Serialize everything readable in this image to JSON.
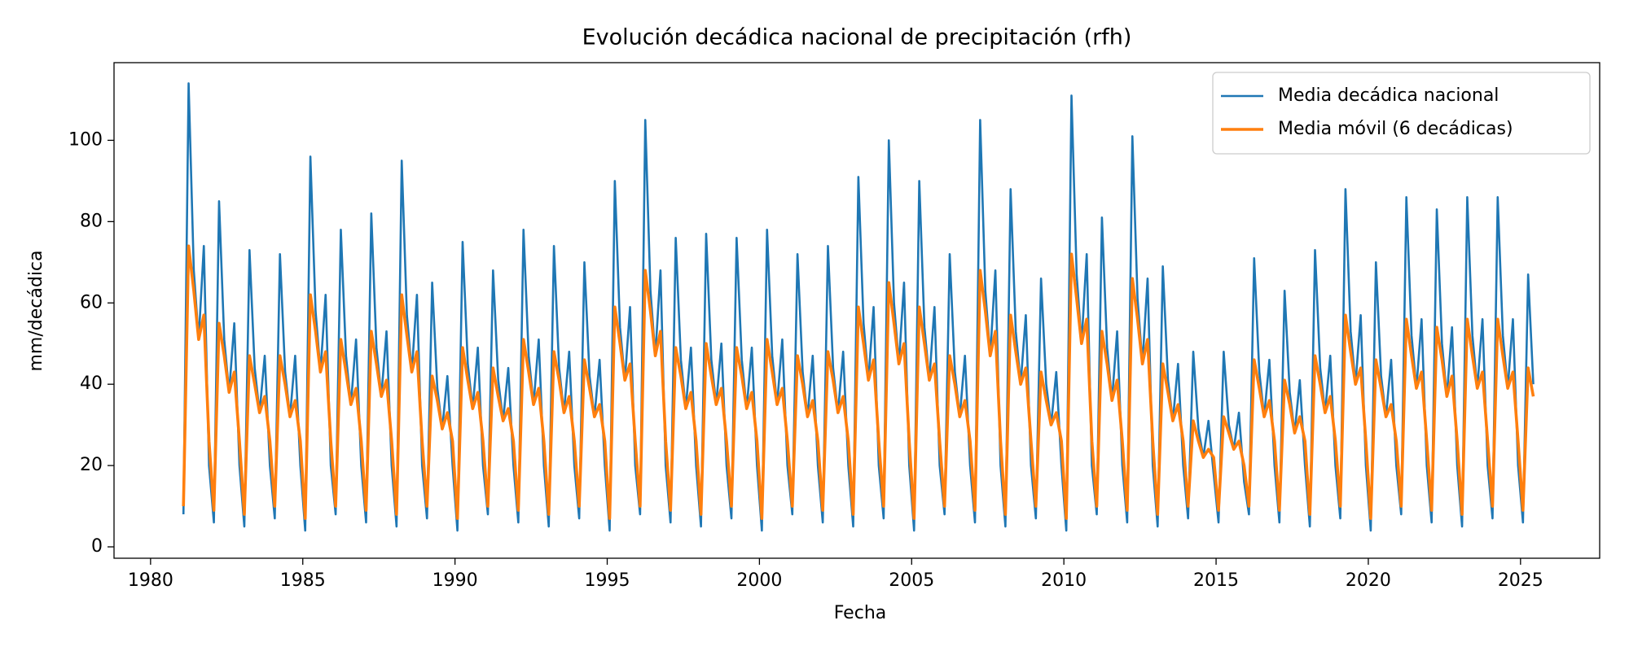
{
  "chart_data": {
    "type": "line",
    "title": "Evolución decádica nacional de precipitación (rfh)",
    "xlabel": "Fecha",
    "ylabel": "mm/decádica",
    "xlim": [
      1978.8,
      2027.6
    ],
    "ylim": [
      -2.8,
      119.1
    ],
    "xticks": [
      1980,
      1985,
      1990,
      1995,
      2000,
      2005,
      2010,
      2015,
      2020,
      2025
    ],
    "yticks": [
      0,
      20,
      40,
      60,
      80,
      100
    ],
    "legend": "upper right",
    "grid": false,
    "x": [
      1981.08,
      1981.25,
      1981.42,
      1981.58,
      1981.75,
      1981.92,
      1982.08,
      1982.25,
      1982.42,
      1982.58,
      1982.75,
      1982.92,
      1983.08,
      1983.25,
      1983.42,
      1983.58,
      1983.75,
      1983.92,
      1984.08,
      1984.25,
      1984.42,
      1984.58,
      1984.75,
      1984.92,
      1985.08,
      1985.25,
      1985.42,
      1985.58,
      1985.75,
      1985.92,
      1986.08,
      1986.25,
      1986.42,
      1986.58,
      1986.75,
      1986.92,
      1987.08,
      1987.25,
      1987.42,
      1987.58,
      1987.75,
      1987.92,
      1988.08,
      1988.25,
      1988.42,
      1988.58,
      1988.75,
      1988.92,
      1989.08,
      1989.25,
      1989.42,
      1989.58,
      1989.75,
      1989.92,
      1990.08,
      1990.25,
      1990.42,
      1990.58,
      1990.75,
      1990.92,
      1991.08,
      1991.25,
      1991.42,
      1991.58,
      1991.75,
      1991.92,
      1992.08,
      1992.25,
      1992.42,
      1992.58,
      1992.75,
      1992.92,
      1993.08,
      1993.25,
      1993.42,
      1993.58,
      1993.75,
      1993.92,
      1994.08,
      1994.25,
      1994.42,
      1994.58,
      1994.75,
      1994.92,
      1995.08,
      1995.25,
      1995.42,
      1995.58,
      1995.75,
      1995.92,
      1996.08,
      1996.25,
      1996.42,
      1996.58,
      1996.75,
      1996.92,
      1997.08,
      1997.25,
      1997.42,
      1997.58,
      1997.75,
      1997.92,
      1998.08,
      1998.25,
      1998.42,
      1998.58,
      1998.75,
      1998.92,
      1999.08,
      1999.25,
      1999.42,
      1999.58,
      1999.75,
      1999.92,
      2000.08,
      2000.25,
      2000.42,
      2000.58,
      2000.75,
      2000.92,
      2001.08,
      2001.25,
      2001.42,
      2001.58,
      2001.75,
      2001.92,
      2002.08,
      2002.25,
      2002.42,
      2002.58,
      2002.75,
      2002.92,
      2003.08,
      2003.25,
      2003.42,
      2003.58,
      2003.75,
      2003.92,
      2004.08,
      2004.25,
      2004.42,
      2004.58,
      2004.75,
      2004.92,
      2005.08,
      2005.25,
      2005.42,
      2005.58,
      2005.75,
      2005.92,
      2006.08,
      2006.25,
      2006.42,
      2006.58,
      2006.75,
      2006.92,
      2007.08,
      2007.25,
      2007.42,
      2007.58,
      2007.75,
      2007.92,
      2008.08,
      2008.25,
      2008.42,
      2008.58,
      2008.75,
      2008.92,
      2009.08,
      2009.25,
      2009.42,
      2009.58,
      2009.75,
      2009.92,
      2010.08,
      2010.25,
      2010.42,
      2010.58,
      2010.75,
      2010.92,
      2011.08,
      2011.25,
      2011.42,
      2011.58,
      2011.75,
      2011.92,
      2012.08,
      2012.25,
      2012.42,
      2012.58,
      2012.75,
      2012.92,
      2013.08,
      2013.25,
      2013.42,
      2013.58,
      2013.75,
      2013.92,
      2014.08,
      2014.25,
      2014.42,
      2014.58,
      2014.75,
      2014.92,
      2015.08,
      2015.25,
      2015.42,
      2015.58,
      2015.75,
      2015.92,
      2016.08,
      2016.25,
      2016.42,
      2016.58,
      2016.75,
      2016.92,
      2017.08,
      2017.25,
      2017.42,
      2017.58,
      2017.75,
      2017.92,
      2018.08,
      2018.25,
      2018.42,
      2018.58,
      2018.75,
      2018.92,
      2019.08,
      2019.25,
      2019.42,
      2019.58,
      2019.75,
      2019.92,
      2020.08,
      2020.25,
      2020.42,
      2020.58,
      2020.75,
      2020.92,
      2021.08,
      2021.25,
      2021.42,
      2021.58,
      2021.75,
      2021.92,
      2022.08,
      2022.25,
      2022.42,
      2022.58,
      2022.75,
      2022.92,
      2023.08,
      2023.25,
      2023.42,
      2023.58,
      2023.75,
      2023.92,
      2024.08,
      2024.25,
      2024.42,
      2024.58,
      2024.75,
      2024.92,
      2025.08,
      2025.25,
      2025.42
    ],
    "series": [
      {
        "name": "Media decádica nacional",
        "color": "#1f77b4",
        "width": 2.6,
        "values": [
          8,
          114,
          68,
          51,
          74,
          20,
          6,
          85,
          51,
          38,
          55,
          20,
          5,
          73,
          44,
          33,
          47,
          20,
          7,
          72,
          43,
          32,
          47,
          20,
          4,
          96,
          58,
          43,
          62,
          20,
          8,
          78,
          47,
          35,
          51,
          20,
          6,
          82,
          49,
          37,
          53,
          20,
          5,
          95,
          57,
          43,
          62,
          20,
          7,
          65,
          39,
          29,
          42,
          20,
          4,
          75,
          45,
          34,
          49,
          20,
          8,
          68,
          41,
          31,
          44,
          20,
          6,
          78,
          47,
          35,
          51,
          20,
          5,
          74,
          44,
          33,
          48,
          20,
          7,
          70,
          42,
          32,
          46,
          20,
          4,
          90,
          54,
          41,
          59,
          20,
          8,
          105,
          63,
          47,
          68,
          20,
          6,
          76,
          46,
          34,
          49,
          20,
          5,
          77,
          46,
          35,
          50,
          20,
          7,
          76,
          46,
          34,
          49,
          20,
          4,
          78,
          47,
          35,
          51,
          20,
          8,
          72,
          43,
          32,
          47,
          20,
          6,
          74,
          44,
          33,
          48,
          20,
          5,
          91,
          55,
          41,
          59,
          20,
          7,
          100,
          60,
          45,
          65,
          20,
          4,
          90,
          54,
          41,
          59,
          20,
          8,
          72,
          43,
          32,
          47,
          20,
          6,
          105,
          63,
          47,
          68,
          20,
          5,
          88,
          53,
          40,
          57,
          20,
          7,
          66,
          40,
          30,
          43,
          20,
          4,
          111,
          67,
          50,
          72,
          20,
          8,
          81,
          49,
          36,
          53,
          20,
          6,
          101,
          61,
          45,
          66,
          20,
          5,
          69,
          41,
          31,
          45,
          20,
          7,
          48,
          29,
          22,
          31,
          18,
          6,
          48,
          30,
          24,
          33,
          16,
          8,
          71,
          43,
          32,
          46,
          20,
          6,
          63,
          38,
          28,
          41,
          20,
          5,
          73,
          44,
          33,
          47,
          20,
          7,
          88,
          53,
          40,
          57,
          20,
          4,
          70,
          42,
          32,
          46,
          20,
          8,
          86,
          52,
          39,
          56,
          20,
          6,
          83,
          50,
          37,
          54,
          20,
          5,
          86,
          52,
          39,
          56,
          20,
          7,
          86,
          52,
          39,
          56,
          20,
          6,
          67,
          40
        ]
      },
      {
        "name": "Media móvil (6 decádicas)",
        "color": "#ff7f0e",
        "width": 3.6,
        "values": [
          10,
          74,
          63,
          51,
          57,
          26,
          9,
          55,
          47,
          38,
          43,
          26,
          8,
          47,
          40,
          33,
          37,
          26,
          10,
          47,
          40,
          32,
          36,
          26,
          7,
          62,
          53,
          43,
          48,
          26,
          10,
          51,
          43,
          35,
          39,
          26,
          9,
          53,
          45,
          37,
          41,
          26,
          8,
          62,
          52,
          43,
          48,
          26,
          10,
          42,
          36,
          29,
          33,
          26,
          7,
          49,
          41,
          34,
          38,
          26,
          10,
          44,
          37,
          31,
          34,
          26,
          9,
          51,
          43,
          35,
          39,
          26,
          8,
          48,
          41,
          33,
          37,
          26,
          10,
          46,
          39,
          32,
          35,
          26,
          7,
          59,
          50,
          41,
          45,
          26,
          10,
          68,
          58,
          47,
          53,
          26,
          9,
          49,
          42,
          34,
          38,
          26,
          8,
          50,
          42,
          35,
          39,
          26,
          10,
          49,
          42,
          34,
          38,
          26,
          7,
          51,
          43,
          35,
          39,
          26,
          10,
          47,
          40,
          32,
          36,
          26,
          9,
          48,
          41,
          33,
          37,
          26,
          8,
          59,
          50,
          41,
          46,
          26,
          10,
          65,
          55,
          45,
          50,
          26,
          7,
          59,
          50,
          41,
          45,
          26,
          10,
          47,
          40,
          32,
          36,
          26,
          9,
          68,
          58,
          47,
          53,
          26,
          8,
          57,
          48,
          40,
          44,
          26,
          10,
          43,
          36,
          30,
          33,
          26,
          7,
          72,
          61,
          50,
          56,
          26,
          10,
          53,
          45,
          36,
          41,
          26,
          9,
          66,
          56,
          45,
          51,
          26,
          8,
          45,
          38,
          31,
          35,
          26,
          10,
          31,
          26,
          22,
          24,
          22,
          9,
          32,
          28,
          24,
          26,
          20,
          10,
          46,
          39,
          32,
          36,
          26,
          9,
          41,
          35,
          28,
          32,
          26,
          8,
          47,
          40,
          33,
          37,
          26,
          10,
          57,
          48,
          40,
          44,
          26,
          7,
          46,
          39,
          32,
          35,
          26,
          10,
          56,
          47,
          39,
          43,
          26,
          9,
          54,
          46,
          37,
          42,
          26,
          8,
          56,
          47,
          39,
          43,
          26,
          10,
          56,
          47,
          39,
          43,
          26,
          9,
          44,
          37
        ]
      }
    ]
  }
}
